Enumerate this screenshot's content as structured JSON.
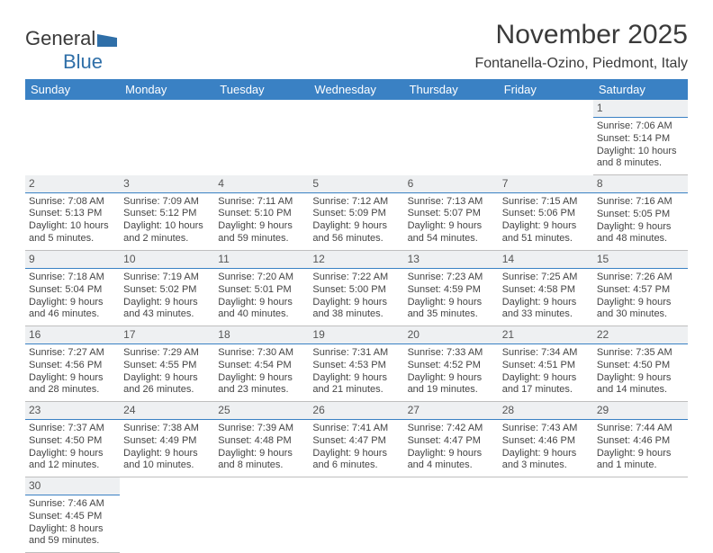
{
  "logo": {
    "word1": "General",
    "word2": "Blue"
  },
  "title": "November 2025",
  "subtitle": "Fontanella-Ozino, Piedmont, Italy",
  "colors": {
    "header_bg": "#3a81c4",
    "header_text": "#ffffff",
    "daynum_bg": "#eef0f2",
    "daynum_border": "#3a81c4",
    "cell_border": "#bfbfbf",
    "logo_blue": "#2f6fa8"
  },
  "day_headers": [
    "Sunday",
    "Monday",
    "Tuesday",
    "Wednesday",
    "Thursday",
    "Friday",
    "Saturday"
  ],
  "weeks": [
    [
      null,
      null,
      null,
      null,
      null,
      null,
      {
        "n": "1",
        "sunrise": "7:06 AM",
        "sunset": "5:14 PM",
        "dl1": "10 hours",
        "dl2": "and 8 minutes."
      }
    ],
    [
      {
        "n": "2",
        "sunrise": "7:08 AM",
        "sunset": "5:13 PM",
        "dl1": "10 hours",
        "dl2": "and 5 minutes."
      },
      {
        "n": "3",
        "sunrise": "7:09 AM",
        "sunset": "5:12 PM",
        "dl1": "10 hours",
        "dl2": "and 2 minutes."
      },
      {
        "n": "4",
        "sunrise": "7:11 AM",
        "sunset": "5:10 PM",
        "dl1": "9 hours",
        "dl2": "and 59 minutes."
      },
      {
        "n": "5",
        "sunrise": "7:12 AM",
        "sunset": "5:09 PM",
        "dl1": "9 hours",
        "dl2": "and 56 minutes."
      },
      {
        "n": "6",
        "sunrise": "7:13 AM",
        "sunset": "5:07 PM",
        "dl1": "9 hours",
        "dl2": "and 54 minutes."
      },
      {
        "n": "7",
        "sunrise": "7:15 AM",
        "sunset": "5:06 PM",
        "dl1": "9 hours",
        "dl2": "and 51 minutes."
      },
      {
        "n": "8",
        "sunrise": "7:16 AM",
        "sunset": "5:05 PM",
        "dl1": "9 hours",
        "dl2": "and 48 minutes."
      }
    ],
    [
      {
        "n": "9",
        "sunrise": "7:18 AM",
        "sunset": "5:04 PM",
        "dl1": "9 hours",
        "dl2": "and 46 minutes."
      },
      {
        "n": "10",
        "sunrise": "7:19 AM",
        "sunset": "5:02 PM",
        "dl1": "9 hours",
        "dl2": "and 43 minutes."
      },
      {
        "n": "11",
        "sunrise": "7:20 AM",
        "sunset": "5:01 PM",
        "dl1": "9 hours",
        "dl2": "and 40 minutes."
      },
      {
        "n": "12",
        "sunrise": "7:22 AM",
        "sunset": "5:00 PM",
        "dl1": "9 hours",
        "dl2": "and 38 minutes."
      },
      {
        "n": "13",
        "sunrise": "7:23 AM",
        "sunset": "4:59 PM",
        "dl1": "9 hours",
        "dl2": "and 35 minutes."
      },
      {
        "n": "14",
        "sunrise": "7:25 AM",
        "sunset": "4:58 PM",
        "dl1": "9 hours",
        "dl2": "and 33 minutes."
      },
      {
        "n": "15",
        "sunrise": "7:26 AM",
        "sunset": "4:57 PM",
        "dl1": "9 hours",
        "dl2": "and 30 minutes."
      }
    ],
    [
      {
        "n": "16",
        "sunrise": "7:27 AM",
        "sunset": "4:56 PM",
        "dl1": "9 hours",
        "dl2": "and 28 minutes."
      },
      {
        "n": "17",
        "sunrise": "7:29 AM",
        "sunset": "4:55 PM",
        "dl1": "9 hours",
        "dl2": "and 26 minutes."
      },
      {
        "n": "18",
        "sunrise": "7:30 AM",
        "sunset": "4:54 PM",
        "dl1": "9 hours",
        "dl2": "and 23 minutes."
      },
      {
        "n": "19",
        "sunrise": "7:31 AM",
        "sunset": "4:53 PM",
        "dl1": "9 hours",
        "dl2": "and 21 minutes."
      },
      {
        "n": "20",
        "sunrise": "7:33 AM",
        "sunset": "4:52 PM",
        "dl1": "9 hours",
        "dl2": "and 19 minutes."
      },
      {
        "n": "21",
        "sunrise": "7:34 AM",
        "sunset": "4:51 PM",
        "dl1": "9 hours",
        "dl2": "and 17 minutes."
      },
      {
        "n": "22",
        "sunrise": "7:35 AM",
        "sunset": "4:50 PM",
        "dl1": "9 hours",
        "dl2": "and 14 minutes."
      }
    ],
    [
      {
        "n": "23",
        "sunrise": "7:37 AM",
        "sunset": "4:50 PM",
        "dl1": "9 hours",
        "dl2": "and 12 minutes."
      },
      {
        "n": "24",
        "sunrise": "7:38 AM",
        "sunset": "4:49 PM",
        "dl1": "9 hours",
        "dl2": "and 10 minutes."
      },
      {
        "n": "25",
        "sunrise": "7:39 AM",
        "sunset": "4:48 PM",
        "dl1": "9 hours",
        "dl2": "and 8 minutes."
      },
      {
        "n": "26",
        "sunrise": "7:41 AM",
        "sunset": "4:47 PM",
        "dl1": "9 hours",
        "dl2": "and 6 minutes."
      },
      {
        "n": "27",
        "sunrise": "7:42 AM",
        "sunset": "4:47 PM",
        "dl1": "9 hours",
        "dl2": "and 4 minutes."
      },
      {
        "n": "28",
        "sunrise": "7:43 AM",
        "sunset": "4:46 PM",
        "dl1": "9 hours",
        "dl2": "and 3 minutes."
      },
      {
        "n": "29",
        "sunrise": "7:44 AM",
        "sunset": "4:46 PM",
        "dl1": "9 hours",
        "dl2": "and 1 minute."
      }
    ],
    [
      {
        "n": "30",
        "sunrise": "7:46 AM",
        "sunset": "4:45 PM",
        "dl1": "8 hours",
        "dl2": "and 59 minutes."
      },
      null,
      null,
      null,
      null,
      null,
      null
    ]
  ],
  "labels": {
    "sunrise_prefix": "Sunrise: ",
    "sunset_prefix": "Sunset: ",
    "daylight_prefix": "Daylight: "
  }
}
